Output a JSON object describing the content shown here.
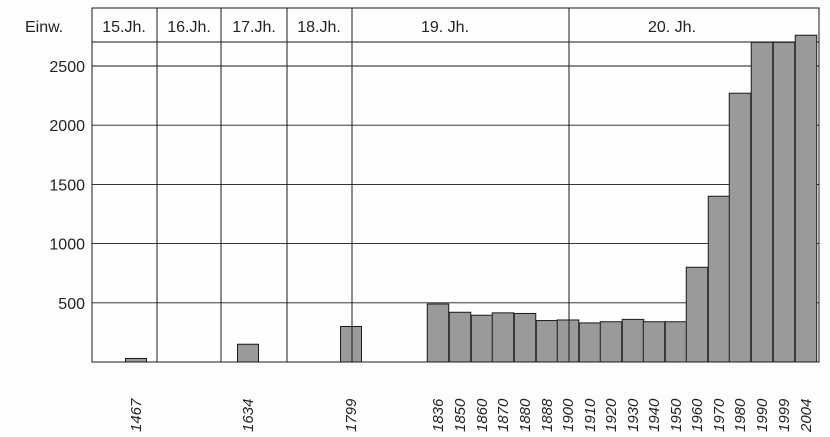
{
  "chart_data": {
    "type": "bar",
    "ylabel": "Einw.",
    "ylim": [
      0,
      2800
    ],
    "yticks": [
      500,
      1000,
      1500,
      2000,
      2500
    ],
    "grid": true,
    "bar_color": "#9a9a9a",
    "centuries": [
      "15.Jh.",
      "16.Jh.",
      "17.Jh.",
      "18.Jh.",
      "19. Jh.",
      "20. Jh."
    ],
    "categories": [
      "1467",
      "1634",
      "1799",
      "1836",
      "1850",
      "1860",
      "1870",
      "1880",
      "1888",
      "1900",
      "1910",
      "1920",
      "1930",
      "1940",
      "1950",
      "1960",
      "1970",
      "1980",
      "1990",
      "1999",
      "2004"
    ],
    "values": [
      30,
      150,
      300,
      490,
      420,
      395,
      415,
      410,
      350,
      355,
      330,
      340,
      360,
      340,
      340,
      800,
      1400,
      2270,
      2700,
      2700,
      2760
    ]
  }
}
